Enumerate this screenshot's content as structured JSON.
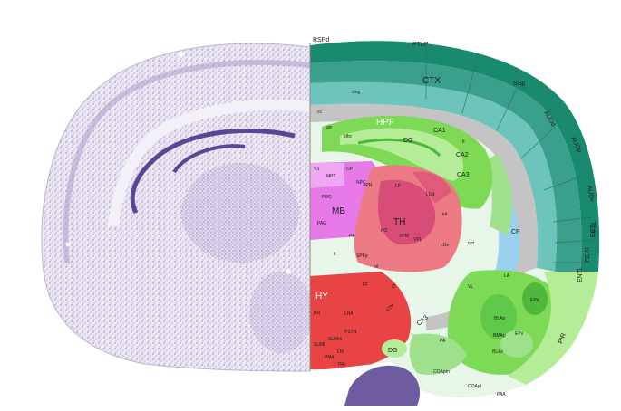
{
  "figure": {
    "left_panel": "Nissl-stained coronal section (left hemisphere)",
    "right_panel": "Reference atlas annotation (right hemisphere)"
  },
  "colors": {
    "cortex_dark": "#1a8a6e",
    "cortex_mid": "#3aa08c",
    "cortex_light": "#6cc4bb",
    "hippocampus": "#7ed957",
    "hippocampus_light": "#b4ec97",
    "thalamus": "#ec7a84",
    "thalamus_dark": "#d84d78",
    "midbrain": "#e678e8",
    "hypothalamus": "#e84444",
    "striatum": "#9fe08c",
    "fiber_tracts": "#c4c4c4",
    "ventricle": "#9bd0ee",
    "nissl_stain": "#8b7ab8"
  },
  "labels": {
    "RSPd": "RSPd",
    "PTLP": "PTLP",
    "CTX": "CTX",
    "SSp": "SSp",
    "AUDd": "AUDd",
    "AUDp": "AUDp",
    "AUDv": "AUDv",
    "TEa": "TEa",
    "ECT": "ECT",
    "PERI": "PERI",
    "ENTl": "ENTl",
    "PIR": "PIR",
    "HPF": "HPF",
    "CA1": "CA1",
    "CA2": "CA2",
    "CA3": "CA3",
    "CA3b": "CA3",
    "DG": "DG",
    "DGb": "DG",
    "TH": "TH",
    "LP": "LP",
    "LGd": "LGd",
    "LGv": "LGv",
    "PO": "PO",
    "VPM": "VPM",
    "VPL": "VPL",
    "PF": "PF",
    "SPFp": "SPFp",
    "MB": "MB",
    "OP": "OP",
    "NPC": "NPC",
    "PRC": "PRC",
    "PAG": "PAG",
    "APN": "APN",
    "MPT": "MPT",
    "V3": "V3",
    "HY": "HY",
    "PH": "PH",
    "LHA": "LHA",
    "PSTN": "PSTN",
    "STN": "STN",
    "SUMl": "SUMl",
    "SUMm": "SUMm",
    "LM": "LM",
    "PMd": "PMd",
    "TMv": "TMv",
    "CP": "CP",
    "LA": "LA",
    "EPd": "EPd",
    "EPv": "EPv",
    "BLAp": "BLAp",
    "BMAp": "BMAp",
    "BLAv": "BLAv",
    "PA": "PA",
    "COApm": "COApm",
    "COApl": "COApl",
    "PAA": "PAA",
    "VL": "VL",
    "cing": "cing",
    "alv": "alv",
    "fi": "fi",
    "int": "int",
    "ml": "ml",
    "fr": "fr",
    "opt": "opt",
    "FF": "FF",
    "ZI": "ZI",
    "or": "or",
    "cc": "cc",
    "dhc": "dhc"
  }
}
